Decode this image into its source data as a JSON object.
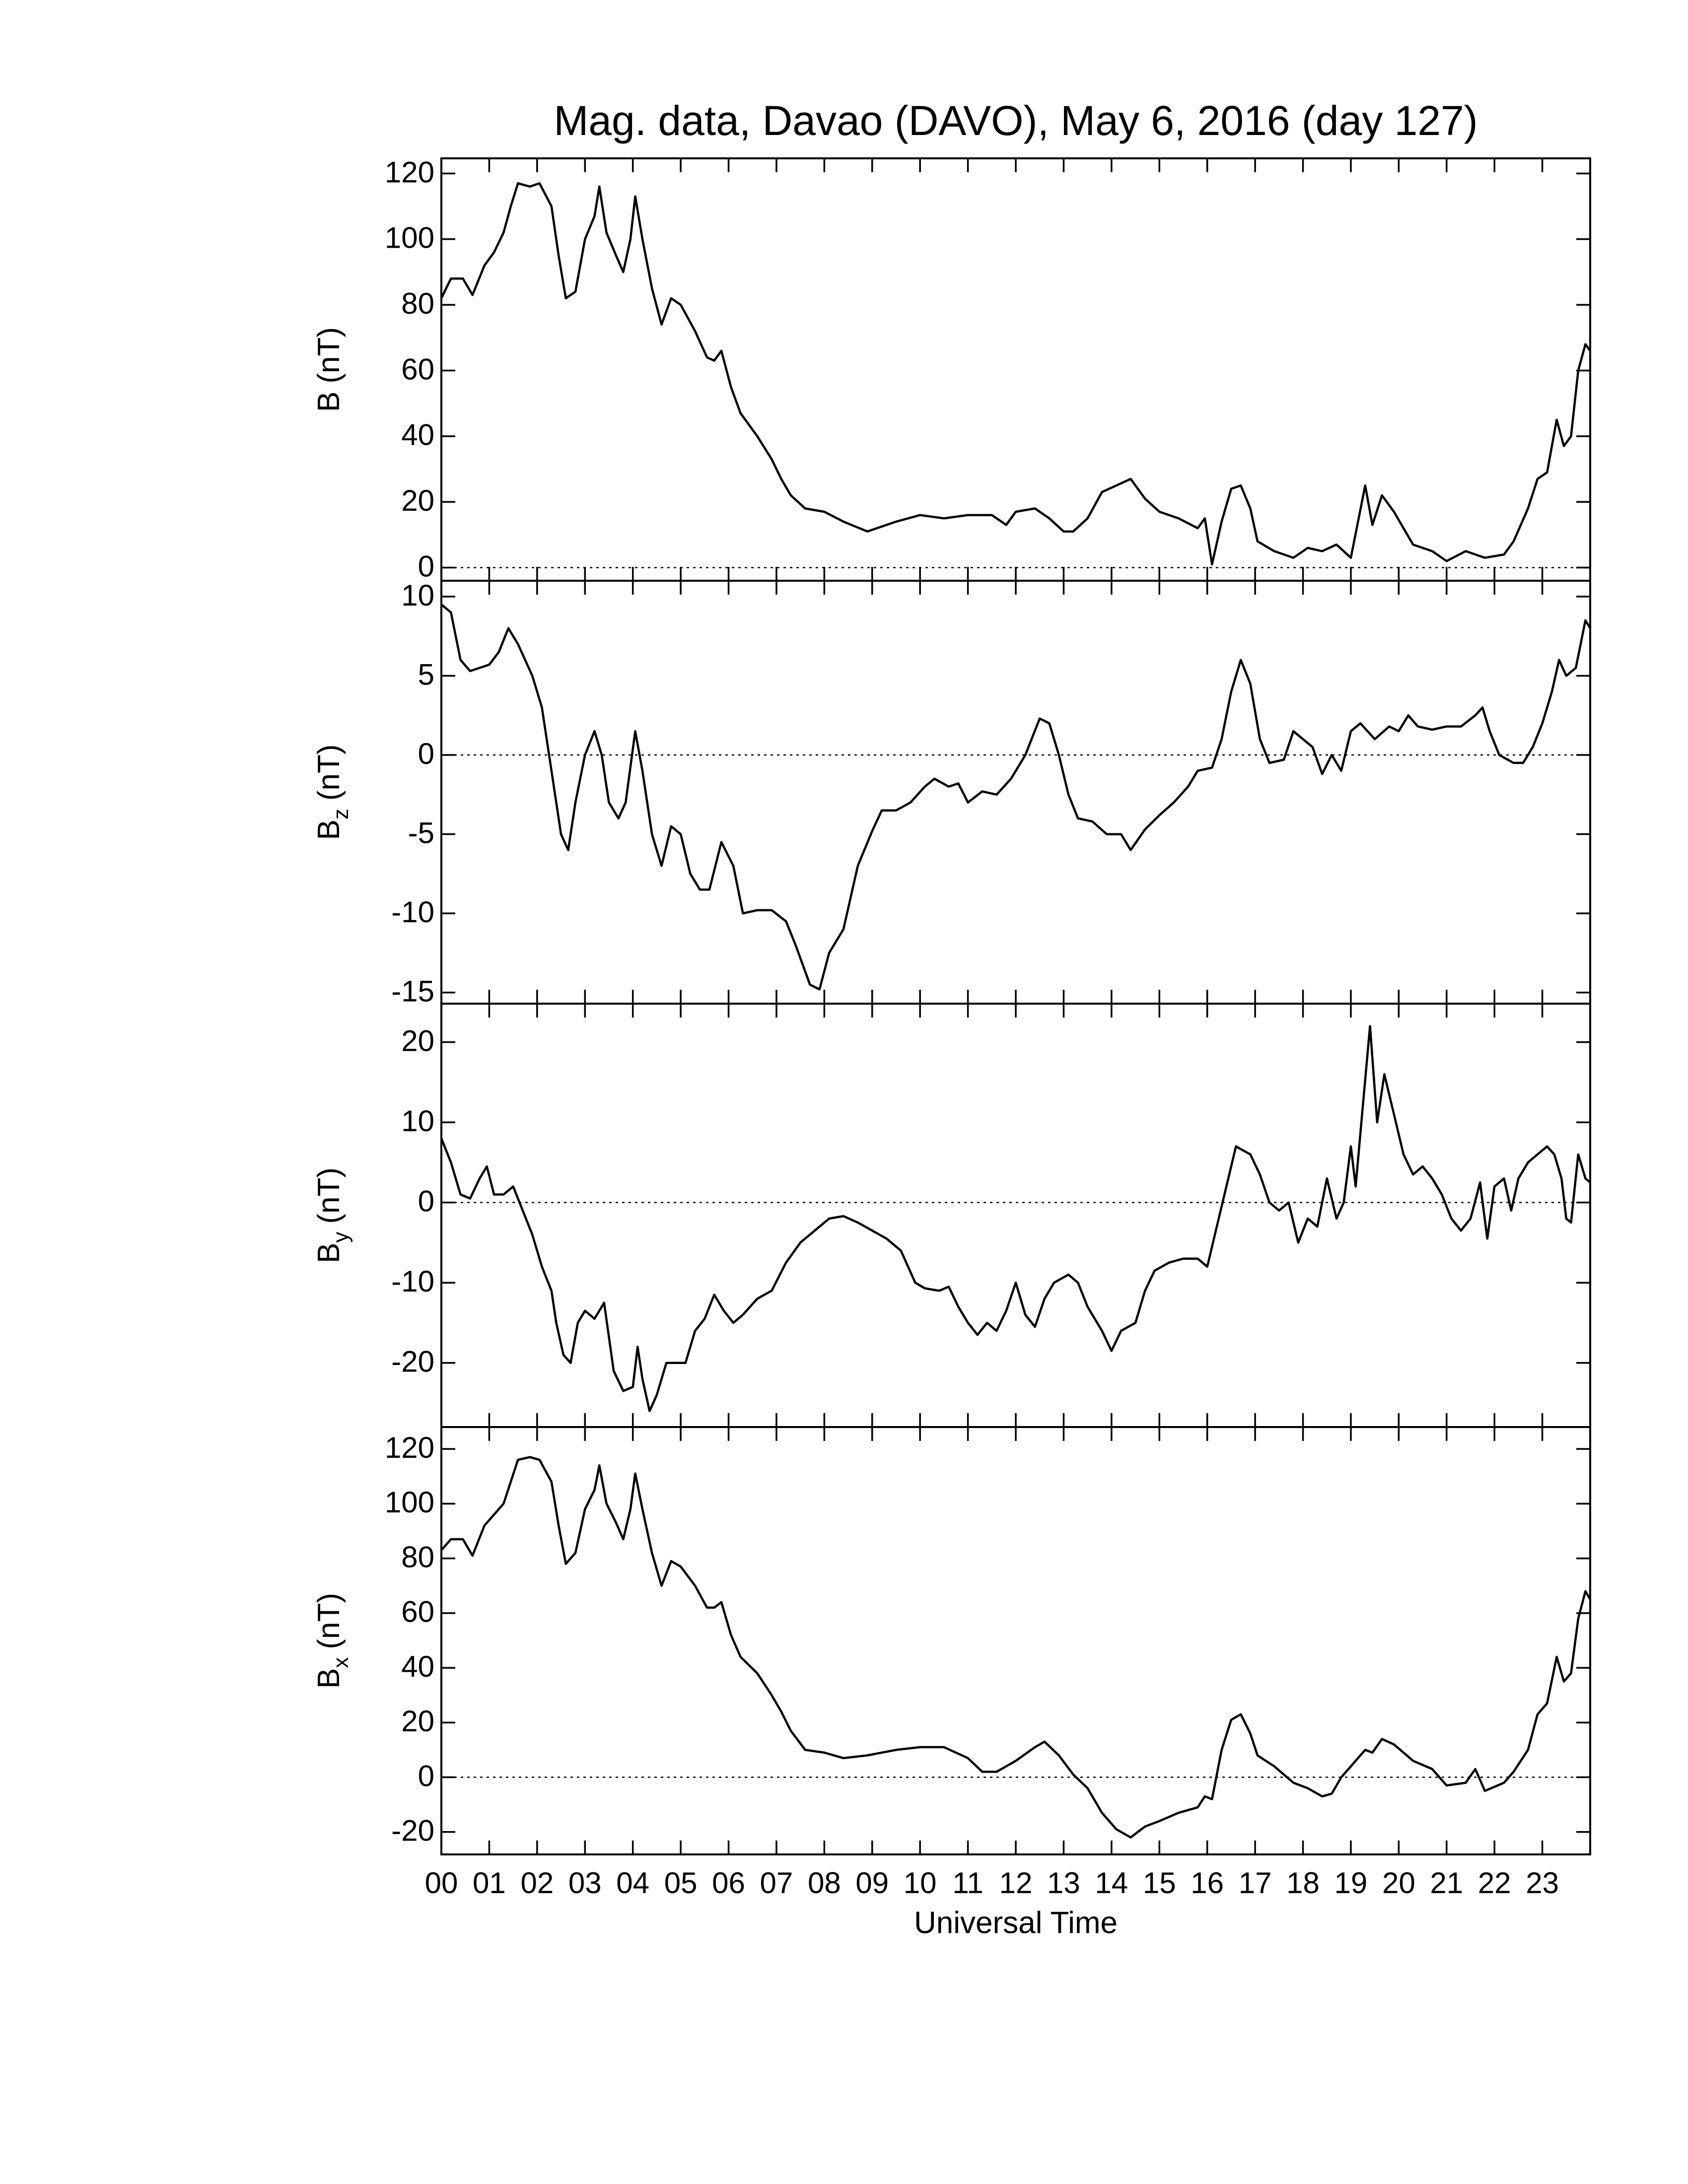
{
  "chart_data": [
    {
      "type": "line",
      "title": "Mag. data, Davao (DAVO), May 6, 2016 (day 127)",
      "ylabel": {
        "symbol": "B",
        "unit": "(nT)"
      },
      "xlim": [
        0,
        24
      ],
      "ylim": [
        -4,
        124.6
      ],
      "yticks": [
        0,
        20,
        40,
        60,
        80,
        100,
        120
      ],
      "hline": 0,
      "color": "#000000",
      "x": [
        0,
        0.2,
        0.45,
        0.65,
        0.9,
        1.1,
        1.3,
        1.45,
        1.6,
        1.85,
        2.05,
        2.3,
        2.45,
        2.6,
        2.8,
        3.0,
        3.2,
        3.3,
        3.45,
        3.65,
        3.8,
        3.95,
        4.05,
        4.2,
        4.4,
        4.6,
        4.8,
        5.0,
        5.3,
        5.55,
        5.7,
        5.85,
        6.05,
        6.25,
        6.6,
        6.9,
        7.1,
        7.3,
        7.6,
        8.0,
        8.4,
        8.9,
        9.5,
        10.0,
        10.5,
        11.0,
        11.5,
        11.8,
        12.0,
        12.4,
        12.7,
        13.0,
        13.2,
        13.5,
        13.8,
        14.1,
        14.4,
        14.7,
        15.0,
        15.4,
        15.8,
        15.95,
        16.1,
        16.3,
        16.5,
        16.7,
        16.9,
        17.05,
        17.4,
        17.8,
        18.1,
        18.4,
        18.7,
        19.0,
        19.3,
        19.45,
        19.65,
        19.9,
        20.1,
        20.3,
        20.7,
        21.0,
        21.4,
        21.8,
        22.2,
        22.4,
        22.7,
        22.9,
        23.1,
        23.3,
        23.45,
        23.6,
        23.75,
        23.9,
        24.0
      ],
      "values": [
        82,
        88,
        88,
        83,
        92,
        96,
        102,
        110,
        117,
        116,
        117,
        110,
        95,
        82,
        84,
        100,
        107,
        116,
        102,
        95,
        90,
        100,
        113,
        100,
        85,
        74,
        82,
        80,
        72,
        64,
        63,
        66,
        55,
        47,
        40,
        33,
        27,
        22,
        18,
        17,
        14,
        11,
        14,
        16,
        15,
        16,
        16,
        13,
        17,
        18,
        15,
        11,
        11,
        15,
        23,
        25,
        27,
        21,
        17,
        15,
        12,
        15,
        1,
        14,
        24,
        25,
        18,
        8,
        5,
        3,
        6,
        5,
        7,
        3,
        25,
        13,
        22,
        17,
        12,
        7,
        5,
        2,
        5,
        3,
        4,
        8,
        18,
        27,
        29,
        45,
        37,
        40,
        60,
        68,
        66
      ]
    },
    {
      "type": "line",
      "ylabel": {
        "symbol": "B",
        "sub": "z",
        "unit": "(nT)"
      },
      "xlim": [
        0,
        24
      ],
      "ylim": [
        -15.7,
        11
      ],
      "yticks": [
        -15,
        -10,
        -5,
        0,
        5,
        10
      ],
      "hline": 0,
      "color": "#000000",
      "x": [
        0,
        0.2,
        0.4,
        0.6,
        0.8,
        1.0,
        1.2,
        1.4,
        1.6,
        1.9,
        2.1,
        2.3,
        2.5,
        2.65,
        2.8,
        3.0,
        3.2,
        3.35,
        3.5,
        3.7,
        3.85,
        4.05,
        4.2,
        4.4,
        4.6,
        4.8,
        5.0,
        5.2,
        5.4,
        5.6,
        5.85,
        6.1,
        6.3,
        6.6,
        6.9,
        7.2,
        7.4,
        7.7,
        7.9,
        8.1,
        8.4,
        8.7,
        9.0,
        9.2,
        9.5,
        9.8,
        10.1,
        10.3,
        10.6,
        10.8,
        11.0,
        11.3,
        11.6,
        11.9,
        12.2,
        12.5,
        12.7,
        12.9,
        13.1,
        13.3,
        13.6,
        13.9,
        14.2,
        14.4,
        14.7,
        15.0,
        15.3,
        15.6,
        15.8,
        16.1,
        16.3,
        16.5,
        16.7,
        16.9,
        17.1,
        17.3,
        17.6,
        17.8,
        18.0,
        18.2,
        18.4,
        18.6,
        18.8,
        19.0,
        19.2,
        19.5,
        19.8,
        20.0,
        20.2,
        20.4,
        20.7,
        21.0,
        21.3,
        21.6,
        21.75,
        21.9,
        22.1,
        22.4,
        22.6,
        22.8,
        23.0,
        23.2,
        23.35,
        23.5,
        23.7,
        23.9,
        24.0
      ],
      "values": [
        9.5,
        9,
        6,
        5.3,
        5.5,
        5.7,
        6.5,
        8,
        7,
        5,
        3,
        -1,
        -5,
        -6,
        -3,
        0,
        1.5,
        0,
        -3,
        -4,
        -3,
        1.5,
        -1,
        -5,
        -7,
        -4.5,
        -5,
        -7.5,
        -8.5,
        -8.5,
        -5.5,
        -7,
        -10,
        -9.8,
        -9.8,
        -10.5,
        -12,
        -14.5,
        -14.8,
        -12.5,
        -11,
        -7,
        -4.8,
        -3.5,
        -3.5,
        -3,
        -2,
        -1.5,
        -2,
        -1.8,
        -3,
        -2.3,
        -2.5,
        -1.5,
        0,
        2.3,
        2,
        0,
        -2.5,
        -4,
        -4.2,
        -5,
        -5,
        -6,
        -4.7,
        -3.8,
        -3,
        -2,
        -1,
        -0.8,
        1,
        4,
        6,
        4.5,
        1,
        -0.5,
        -0.3,
        1.5,
        1,
        0.5,
        -1.2,
        0,
        -1,
        1.5,
        2,
        1,
        1.8,
        1.5,
        2.5,
        1.8,
        1.6,
        1.8,
        1.8,
        2.5,
        3,
        1.5,
        0,
        -0.5,
        -0.5,
        0.5,
        2,
        4,
        6,
        5,
        5.5,
        8.5,
        8
      ]
    },
    {
      "type": "line",
      "ylabel": {
        "symbol": "B",
        "sub": "y",
        "unit": "(nT)"
      },
      "xlim": [
        0,
        24
      ],
      "ylim": [
        -28,
        24.8
      ],
      "yticks": [
        -20,
        -10,
        0,
        10,
        20
      ],
      "hline": 0,
      "color": "#000000",
      "x": [
        0,
        0.2,
        0.4,
        0.6,
        0.8,
        0.95,
        1.1,
        1.3,
        1.5,
        1.7,
        1.9,
        2.1,
        2.3,
        2.4,
        2.55,
        2.7,
        2.85,
        3.0,
        3.2,
        3.4,
        3.6,
        3.8,
        4.0,
        4.1,
        4.2,
        4.35,
        4.5,
        4.7,
        4.9,
        5.1,
        5.3,
        5.5,
        5.7,
        5.9,
        6.1,
        6.3,
        6.6,
        6.9,
        7.2,
        7.5,
        7.8,
        8.1,
        8.4,
        8.7,
        9.0,
        9.3,
        9.6,
        9.9,
        10.1,
        10.4,
        10.6,
        10.8,
        11.0,
        11.2,
        11.4,
        11.6,
        11.8,
        12.0,
        12.2,
        12.4,
        12.6,
        12.8,
        13.1,
        13.3,
        13.5,
        13.8,
        14.0,
        14.2,
        14.5,
        14.7,
        14.9,
        15.2,
        15.5,
        15.8,
        16.0,
        16.2,
        16.4,
        16.6,
        16.9,
        17.1,
        17.3,
        17.5,
        17.7,
        17.9,
        18.1,
        18.3,
        18.5,
        18.7,
        18.85,
        19.0,
        19.1,
        19.25,
        19.4,
        19.55,
        19.7,
        19.9,
        20.1,
        20.3,
        20.5,
        20.7,
        20.9,
        21.1,
        21.3,
        21.5,
        21.7,
        21.85,
        22.0,
        22.2,
        22.35,
        22.5,
        22.7,
        22.9,
        23.1,
        23.25,
        23.4,
        23.5,
        23.6,
        23.75,
        23.9,
        24.0
      ],
      "values": [
        8,
        5,
        1,
        0.5,
        3,
        4.5,
        1,
        1,
        2,
        -1,
        -4,
        -8,
        -11,
        -15,
        -19,
        -20,
        -15,
        -13.5,
        -14.5,
        -12.5,
        -21,
        -23.5,
        -23,
        -18,
        -22,
        -26,
        -24,
        -20,
        -20,
        -20,
        -16,
        -14.5,
        -11.5,
        -13.5,
        -15,
        -14,
        -12,
        -11,
        -7.5,
        -5,
        -3.5,
        -2,
        -1.7,
        -2.5,
        -3.5,
        -4.5,
        -6,
        -10,
        -10.7,
        -11,
        -10.5,
        -13,
        -15,
        -16.5,
        -15,
        -16,
        -13.5,
        -10,
        -14,
        -15.5,
        -12,
        -10,
        -9,
        -10,
        -13,
        -16,
        -18.5,
        -16,
        -15,
        -11,
        -8.5,
        -7.5,
        -7,
        -7,
        -8,
        -3,
        2,
        7,
        6,
        3.5,
        0,
        -1,
        0,
        -5,
        -2,
        -3,
        3,
        -2,
        0,
        7,
        2,
        12,
        22,
        10,
        16,
        11,
        6,
        3.5,
        4.5,
        3,
        1,
        -2,
        -3.5,
        -2,
        2.5,
        -4.5,
        2,
        3,
        -1,
        3,
        5,
        6,
        7,
        6,
        3,
        -2,
        -2.5,
        6,
        3,
        2.5
      ]
    },
    {
      "type": "line",
      "ylabel": {
        "symbol": "B",
        "sub": "x",
        "unit": "(nT)"
      },
      "xlabel": "Universal Time",
      "xlim": [
        0,
        24
      ],
      "ylim": [
        -28.2,
        128
      ],
      "yticks": [
        -20,
        0,
        20,
        40,
        60,
        80,
        100,
        120
      ],
      "hline": 0,
      "color": "#000000",
      "xticks": [
        {
          "value": 0,
          "label": "00"
        },
        {
          "value": 1,
          "label": "01"
        },
        {
          "value": 2,
          "label": "02"
        },
        {
          "value": 3,
          "label": "03"
        },
        {
          "value": 4,
          "label": "04"
        },
        {
          "value": 5,
          "label": "05"
        },
        {
          "value": 6,
          "label": "06"
        },
        {
          "value": 7,
          "label": "07"
        },
        {
          "value": 8,
          "label": "08"
        },
        {
          "value": 9,
          "label": "09"
        },
        10,
        11,
        12,
        13,
        14,
        15,
        16,
        17,
        18,
        19,
        20,
        21,
        22,
        23
      ],
      "x": [
        0,
        0.2,
        0.45,
        0.65,
        0.9,
        1.1,
        1.3,
        1.45,
        1.6,
        1.85,
        2.05,
        2.3,
        2.45,
        2.6,
        2.8,
        3.0,
        3.2,
        3.3,
        3.45,
        3.65,
        3.8,
        3.95,
        4.05,
        4.2,
        4.4,
        4.6,
        4.8,
        5.0,
        5.3,
        5.55,
        5.7,
        5.85,
        6.05,
        6.25,
        6.6,
        6.9,
        7.1,
        7.3,
        7.6,
        8.0,
        8.4,
        8.9,
        9.5,
        10.0,
        10.5,
        11.0,
        11.3,
        11.6,
        12.0,
        12.4,
        12.6,
        12.9,
        13.2,
        13.5,
        13.8,
        14.1,
        14.4,
        14.7,
        15.0,
        15.4,
        15.8,
        15.95,
        16.1,
        16.3,
        16.5,
        16.7,
        16.9,
        17.05,
        17.4,
        17.8,
        18.1,
        18.4,
        18.6,
        18.8,
        19.0,
        19.3,
        19.45,
        19.65,
        19.9,
        20.1,
        20.3,
        20.7,
        21.0,
        21.4,
        21.6,
        21.8,
        22.2,
        22.4,
        22.7,
        22.9,
        23.1,
        23.3,
        23.45,
        23.6,
        23.75,
        23.9,
        24.0
      ],
      "values": [
        83,
        87,
        87,
        81,
        92,
        96,
        100,
        108,
        116,
        117,
        116,
        108,
        92,
        78,
        82,
        98,
        105,
        114,
        100,
        93,
        87,
        98,
        111,
        98,
        82,
        70,
        79,
        77,
        70,
        62,
        62,
        64,
        52,
        44,
        38,
        30,
        24,
        17,
        10,
        9,
        7,
        8,
        10,
        11,
        11,
        7,
        2,
        2,
        6,
        11,
        13,
        8,
        1,
        -4,
        -13,
        -19,
        -22,
        -18,
        -16,
        -13,
        -11,
        -7,
        -8,
        10,
        21,
        23,
        16,
        8,
        4,
        -2,
        -4,
        -7,
        -6,
        0,
        4,
        10,
        9,
        14,
        12,
        9,
        6,
        3,
        -3,
        -2,
        3,
        -5,
        -2,
        2,
        10,
        23,
        27,
        44,
        35,
        38,
        58,
        68,
        65
      ]
    }
  ]
}
